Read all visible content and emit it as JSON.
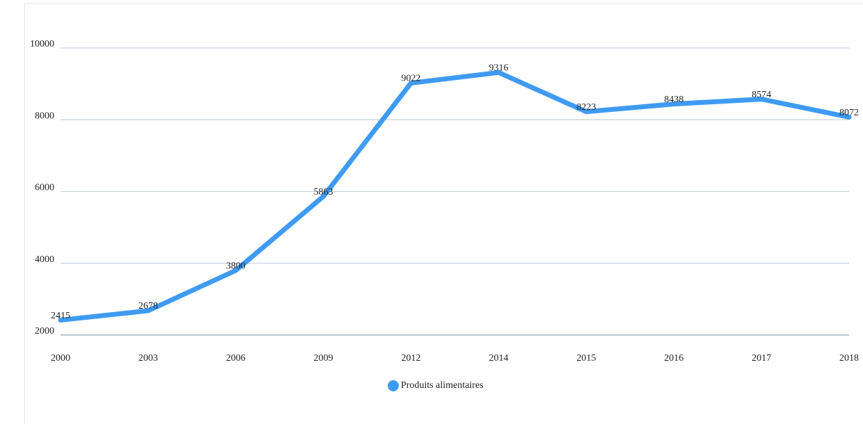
{
  "chart_data": {
    "type": "line",
    "categories": [
      "2000",
      "2003",
      "2006",
      "2009",
      "2012",
      "2014",
      "2015",
      "2016",
      "2017",
      "2018"
    ],
    "series": [
      {
        "name": "Produits alimentaires",
        "color": "#3f9bf2",
        "values": [
          2415,
          2678,
          3800,
          5863,
          9022,
          9316,
          8223,
          8438,
          8574,
          8072
        ]
      }
    ],
    "ylim": [
      2000,
      10000
    ],
    "yticks": [
      2000,
      4000,
      6000,
      8000,
      10000
    ],
    "grid": true,
    "legend": "bottom"
  }
}
